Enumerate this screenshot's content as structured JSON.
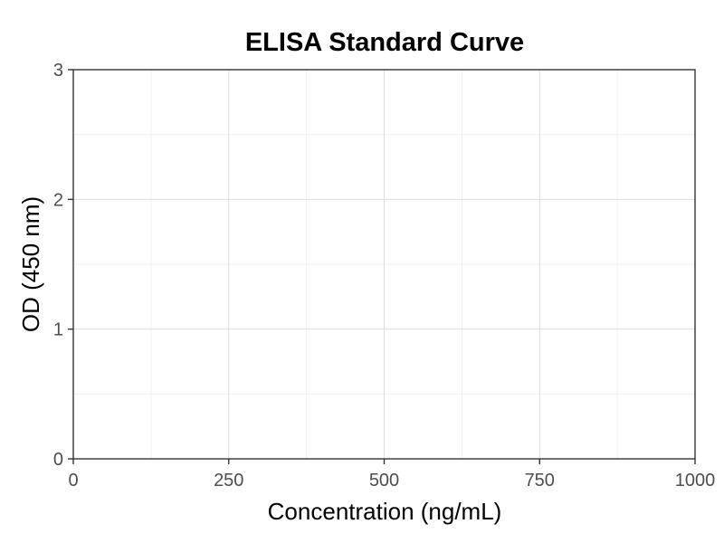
{
  "chart_data": {
    "type": "scatter",
    "title": "ELISA Standard Curve",
    "xlabel": "Concentration (ng/mL)",
    "ylabel": "OD (450 nm)",
    "xlim": [
      0,
      1000
    ],
    "ylim": [
      0,
      3
    ],
    "x_ticks": [
      "0",
      "250",
      "500",
      "750",
      "1000"
    ],
    "y_ticks": [
      "0",
      "1",
      "2",
      "3"
    ],
    "grid": true,
    "series": []
  },
  "colors": {
    "major_grid": "#dedede",
    "minor_grid": "#efefef",
    "axis": "#333333",
    "tick_text": "#4d4d4d"
  }
}
